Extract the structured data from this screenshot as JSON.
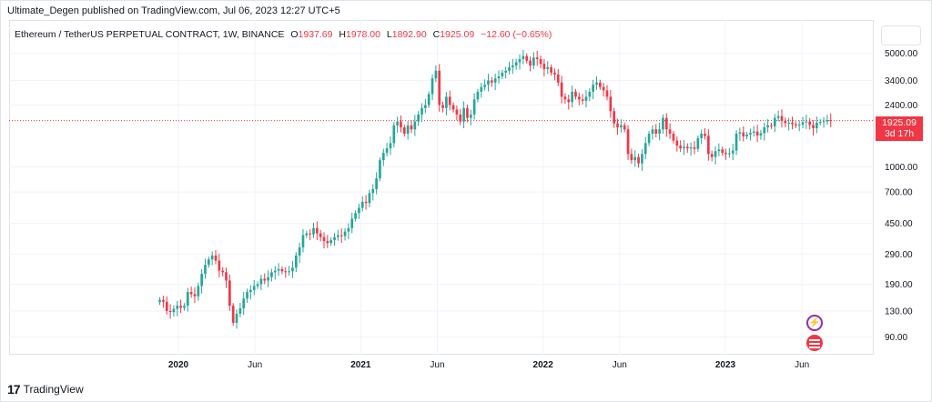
{
  "publisher_line": "Ultimate_Degen published on TradingView.com, Jul 06, 2023 12:27 UTC+5",
  "header": {
    "symbol": "Ethereum / TetherUS PERPETUAL CONTRACT, 1W, BINANCE",
    "open_label": "O",
    "open": "1937.69",
    "high_label": "H",
    "high": "1978.00",
    "low_label": "L",
    "low": "1892.90",
    "close_label": "C",
    "close": "1925.09",
    "change": "−12.60 (−0.65%)"
  },
  "price_tag": {
    "price": "1925.09",
    "countdown": "3d 17h"
  },
  "logo": {
    "text": "TradingView",
    "mark": "17"
  },
  "colors": {
    "up": "#26a69a",
    "down": "#f23645",
    "grid": "#f0f3fa",
    "last_price_line": "#f23645"
  },
  "icons": {
    "idea": "lightning-idea-icon",
    "flag": "us-flag-icon"
  },
  "chart_data": {
    "type": "candlestick",
    "title": "Ethereum / TetherUS PERPETUAL CONTRACT, 1W, BINANCE",
    "y_scale": "log",
    "ylim": [
      70,
      8000
    ],
    "y_ticks": [
      "5000.00",
      "3400.00",
      "2400.00",
      "1000.00",
      "700.00",
      "450.00",
      "290.00",
      "190.00",
      "130.00",
      "90.00"
    ],
    "x_ticks": [
      {
        "label": "2020",
        "year": true,
        "t": 2020.0
      },
      {
        "label": "Jun",
        "year": false,
        "t": 2020.42
      },
      {
        "label": "2021",
        "year": true,
        "t": 2021.0
      },
      {
        "label": "Jun",
        "year": false,
        "t": 2021.42
      },
      {
        "label": "2022",
        "year": true,
        "t": 2022.0
      },
      {
        "label": "Jun",
        "year": false,
        "t": 2022.42
      },
      {
        "label": "2023",
        "year": true,
        "t": 2023.0
      },
      {
        "label": "Jun",
        "year": false,
        "t": 2023.42
      }
    ],
    "last_price": 1925.09,
    "start_date": "2019-11-25",
    "series_close": [
      152,
      148,
      130,
      128,
      134,
      140,
      136,
      140,
      170,
      165,
      160,
      185,
      220,
      250,
      270,
      285,
      265,
      230,
      225,
      200,
      140,
      110,
      125,
      135,
      155,
      170,
      175,
      185,
      190,
      205,
      200,
      210,
      225,
      230,
      235,
      228,
      226,
      228,
      240,
      285,
      320,
      380,
      390,
      385,
      420,
      390,
      370,
      350,
      340,
      355,
      370,
      380,
      375,
      400,
      420,
      480,
      520,
      560,
      610,
      600,
      690,
      730,
      850,
      1100,
      1220,
      1300,
      1400,
      1800,
      1900,
      1750,
      1600,
      1800,
      1700,
      1900,
      2100,
      2300,
      2400,
      2800,
      3500,
      3900,
      2400,
      2300,
      2700,
      2400,
      2250,
      2100,
      1900,
      2300,
      2000,
      2100,
      2600,
      2900,
      3100,
      3200,
      3400,
      3300,
      3500,
      3600,
      3800,
      3900,
      4100,
      4200,
      4400,
      4600,
      4800,
      4500,
      4200,
      4700,
      4600,
      4300,
      4000,
      4100,
      3800,
      3700,
      3300,
      2700,
      2600,
      2500,
      2900,
      2700,
      2600,
      2550,
      2700,
      2900,
      3200,
      3300,
      3100,
      2950,
      2700,
      2200,
      1850,
      1750,
      1800,
      1700,
      1200,
      1100,
      1150,
      1050,
      1200,
      1400,
      1600,
      1700,
      1600,
      1700,
      2000,
      1700,
      1600,
      1450,
      1350,
      1300,
      1330,
      1300,
      1320,
      1290,
      1500,
      1600,
      1550,
      1200,
      1150,
      1250,
      1280,
      1220,
      1200,
      1210,
      1260,
      1600,
      1630,
      1540,
      1580,
      1620,
      1650,
      1560,
      1610,
      1750,
      1800,
      1780,
      2000,
      2050,
      1920,
      1860,
      1870,
      1830,
      1800,
      1820,
      1880,
      1900,
      1810,
      1730,
      1870,
      1890,
      1910,
      1940,
      1925.09
    ]
  }
}
